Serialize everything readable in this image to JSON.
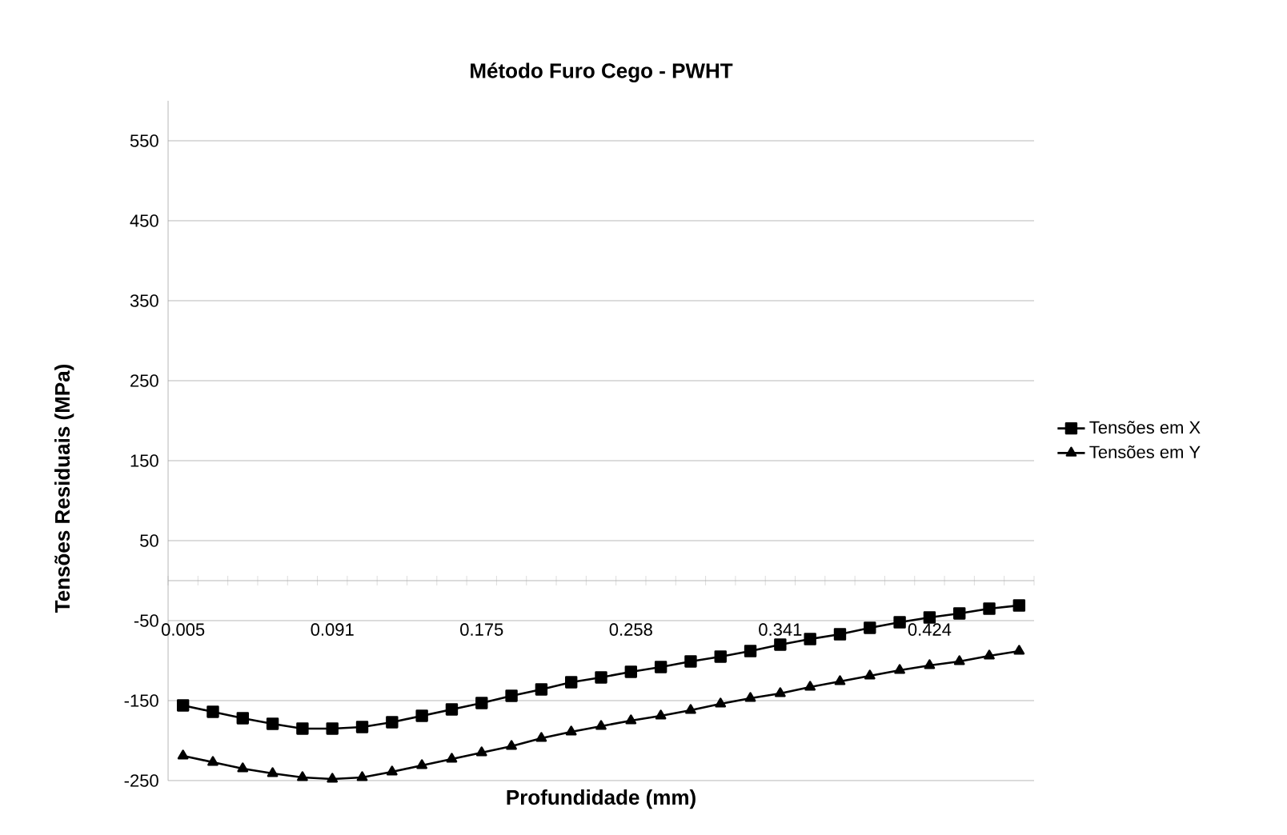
{
  "chart_data": {
    "type": "line",
    "title": "Método Furo Cego - PWHT",
    "xlabel": "Profundidade (mm)",
    "ylabel": "Tensões Residuais (MPa)",
    "categories": [
      "0.005",
      null,
      null,
      null,
      null,
      "0.091",
      null,
      null,
      null,
      null,
      "0.175",
      null,
      null,
      null,
      null,
      "0.258",
      null,
      null,
      null,
      null,
      "0.341",
      null,
      null,
      null,
      null,
      "0.424",
      null,
      null,
      null
    ],
    "series": [
      {
        "name": "Tensões em X",
        "color": "#000000",
        "marker": "square",
        "values": [
          -156,
          -164,
          -172,
          -179,
          -185,
          -185,
          -183,
          -177,
          -169,
          -161,
          -153,
          -144,
          -136,
          -127,
          -121,
          -114,
          -108,
          -101,
          -95,
          -88,
          -80,
          -73,
          -67,
          -59,
          -52,
          -46,
          -41,
          -35,
          -31
        ]
      },
      {
        "name": "Tensões em Y",
        "color": "#000000",
        "marker": "triangle",
        "values": [
          -219,
          -227,
          -235,
          -241,
          -246,
          -248,
          -246,
          -239,
          -231,
          -223,
          -215,
          -207,
          -197,
          -189,
          -182,
          -175,
          -169,
          -162,
          -154,
          -147,
          -141,
          -133,
          -126,
          -119,
          -112,
          -106,
          -101,
          -94,
          -88
        ]
      }
    ],
    "ylim": [
      -250,
      600
    ],
    "yticks": [
      -250,
      -150,
      -50,
      50,
      150,
      250,
      350,
      450,
      550
    ],
    "grid": "y",
    "legend": "right",
    "line_style": "solid"
  }
}
